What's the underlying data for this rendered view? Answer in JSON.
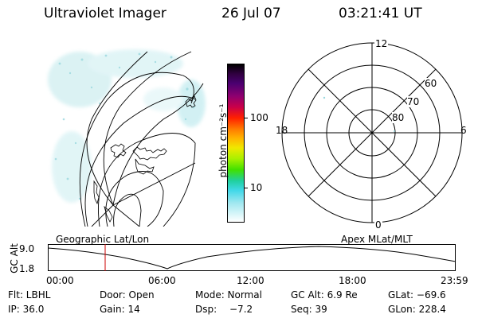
{
  "header": {
    "instrument": "Ultraviolet Imager",
    "date": "26 Jul 07",
    "time": "03:21:41 UT"
  },
  "colorbar": {
    "unit_label": "photon cm⁻²s⁻¹",
    "ticks": [
      "100",
      "10"
    ],
    "colors": [
      "#000000",
      "#300040",
      "#4a0070",
      "#8c0070",
      "#c8004a",
      "#ff2000",
      "#ff7a00",
      "#ffb400",
      "#f0e800",
      "#a8f000",
      "#40e000",
      "#20d0a0",
      "#40d8e8",
      "#a0e8f0",
      "#ffffff"
    ]
  },
  "polar": {
    "mlt_labels": {
      "top": "12",
      "left": "18",
      "right": "6",
      "bottom": "0"
    },
    "lat_labels": [
      "60",
      "70",
      "80"
    ]
  },
  "timeline": {
    "left_caption": "Geographic Lat/Lon",
    "right_caption": "Apex MLat/MLT",
    "axis_title": "GC Alt",
    "y_top": "9.0",
    "y_bottom": "1.8",
    "times": [
      "00:00",
      "06:00",
      "12:00",
      "18:00",
      "23:59"
    ],
    "current_time_fraction": 0.14,
    "marker_color": "#cc0000"
  },
  "footer": {
    "row1": {
      "filter": "Flt: LBHL",
      "door": "Door: Open",
      "mode": "Mode: Normal",
      "gc_alt": "GC Alt: 6.9 Re",
      "glat": "GLat: −69.6"
    },
    "row2": {
      "ip": "IP: 36.0",
      "gain": "Gain: 14",
      "dsp_label": "Dsp:",
      "dsp_value": "−7.2",
      "seq": "Seq: 39",
      "glon": "GLon: 228.4"
    }
  }
}
